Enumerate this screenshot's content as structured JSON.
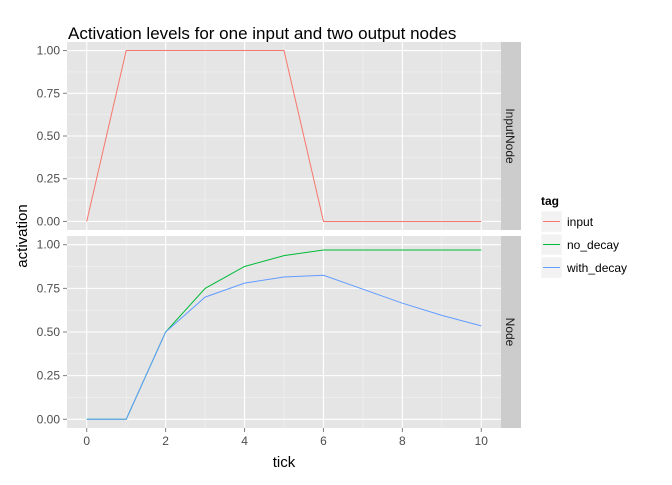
{
  "chart_data": {
    "type": "line",
    "title": "Activation levels for one input and two output nodes",
    "xlabel": "tick",
    "ylabel": "activation",
    "x": [
      0,
      1,
      2,
      3,
      4,
      5,
      6,
      7,
      8,
      9,
      10
    ],
    "xlim": [
      -0.5,
      10.5
    ],
    "ylim": [
      -0.05,
      1.05
    ],
    "xticks": [
      "0",
      "2",
      "4",
      "6",
      "8",
      "10"
    ],
    "yticks": [
      "0.00",
      "0.25",
      "0.50",
      "0.75",
      "1.00"
    ],
    "grid": true,
    "legend": {
      "title": "tag",
      "position": "right",
      "entries": [
        "input",
        "no_decay",
        "with_decay"
      ]
    },
    "facets": [
      {
        "label": "InputNode",
        "series": [
          {
            "name": "input",
            "color": "#F8766D",
            "values": [
              0,
              1,
              1,
              1,
              1,
              1,
              0,
              0,
              0,
              0,
              0
            ]
          }
        ]
      },
      {
        "label": "Node",
        "series": [
          {
            "name": "no_decay",
            "color": "#00BA38",
            "values": [
              0,
              0,
              0.5,
              0.75,
              0.875,
              0.9375,
              0.97,
              0.97,
              0.97,
              0.97,
              0.97
            ]
          },
          {
            "name": "with_decay",
            "color": "#619CFF",
            "values": [
              0,
              0,
              0.5,
              0.7,
              0.78,
              0.815,
              0.825,
              0.745,
              0.665,
              0.595,
              0.535
            ]
          }
        ]
      }
    ]
  }
}
